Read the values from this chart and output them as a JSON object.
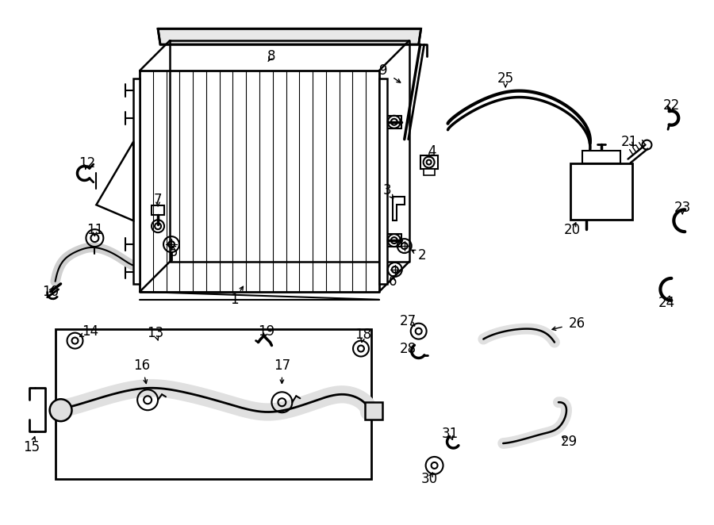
{
  "bg_color": "#ffffff",
  "line_color": "#000000",
  "fig_width": 9.0,
  "fig_height": 6.62,
  "dpi": 100
}
